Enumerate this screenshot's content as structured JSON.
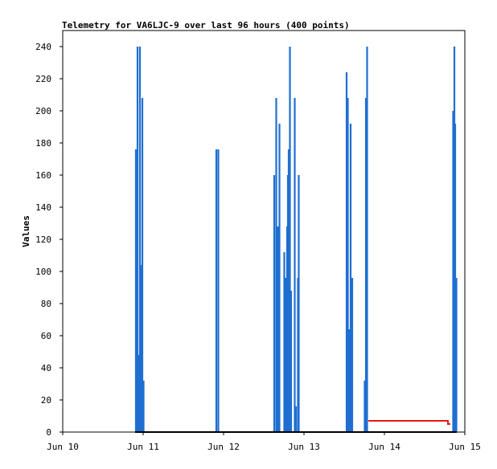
{
  "chart_data": {
    "type": "line",
    "title": "Telemetry for VA6LJC-9 over last 96 hours (400 points)",
    "xlabel": "",
    "ylabel": "Values",
    "ylim": [
      0,
      250
    ],
    "xlim_days": [
      0,
      5
    ],
    "y_ticks": [
      0,
      20,
      40,
      60,
      80,
      100,
      120,
      140,
      160,
      180,
      200,
      220,
      240
    ],
    "x_ticks": [
      {
        "day": 0,
        "label": "Jun 10"
      },
      {
        "day": 1,
        "label": "Jun 11"
      },
      {
        "day": 2,
        "label": "Jun 12"
      },
      {
        "day": 3,
        "label": "Jun 13"
      },
      {
        "day": 4,
        "label": "Jun 14"
      },
      {
        "day": 5,
        "label": "Jun 15"
      }
    ],
    "grid": false,
    "colors": {
      "spikes": "#1f6fd1",
      "step": "#e81818",
      "baseline": "#000000"
    },
    "series": [
      {
        "style": "spikes",
        "points": [
          [
            0.91,
            176
          ],
          [
            0.93,
            240
          ],
          [
            0.945,
            48
          ],
          [
            0.96,
            240
          ],
          [
            0.975,
            104
          ],
          [
            0.99,
            208
          ],
          [
            1.005,
            32
          ],
          [
            1.91,
            176
          ],
          [
            1.935,
            176
          ],
          [
            2.63,
            160
          ],
          [
            2.655,
            208
          ],
          [
            2.675,
            128
          ],
          [
            2.695,
            192
          ],
          [
            2.755,
            112
          ],
          [
            2.77,
            96
          ],
          [
            2.79,
            128
          ],
          [
            2.8,
            160
          ],
          [
            2.81,
            176
          ],
          [
            2.825,
            240
          ],
          [
            2.84,
            88
          ],
          [
            2.885,
            208
          ],
          [
            2.9,
            16
          ],
          [
            2.925,
            96
          ],
          [
            2.935,
            160
          ],
          [
            3.53,
            224
          ],
          [
            3.545,
            208
          ],
          [
            3.56,
            64
          ],
          [
            3.58,
            192
          ],
          [
            3.6,
            96
          ],
          [
            3.755,
            32
          ],
          [
            3.77,
            208
          ],
          [
            3.785,
            240
          ],
          [
            4.855,
            200
          ],
          [
            4.87,
            240
          ],
          [
            4.88,
            192
          ],
          [
            4.895,
            96
          ]
        ]
      },
      {
        "style": "step",
        "points": [
          [
            3.8,
            7
          ],
          [
            4.79,
            7
          ],
          [
            4.79,
            5
          ],
          [
            4.82,
            5
          ]
        ]
      },
      {
        "style": "baseline",
        "points": [
          [
            0.9,
            0
          ],
          [
            4.9,
            0
          ]
        ]
      }
    ]
  }
}
